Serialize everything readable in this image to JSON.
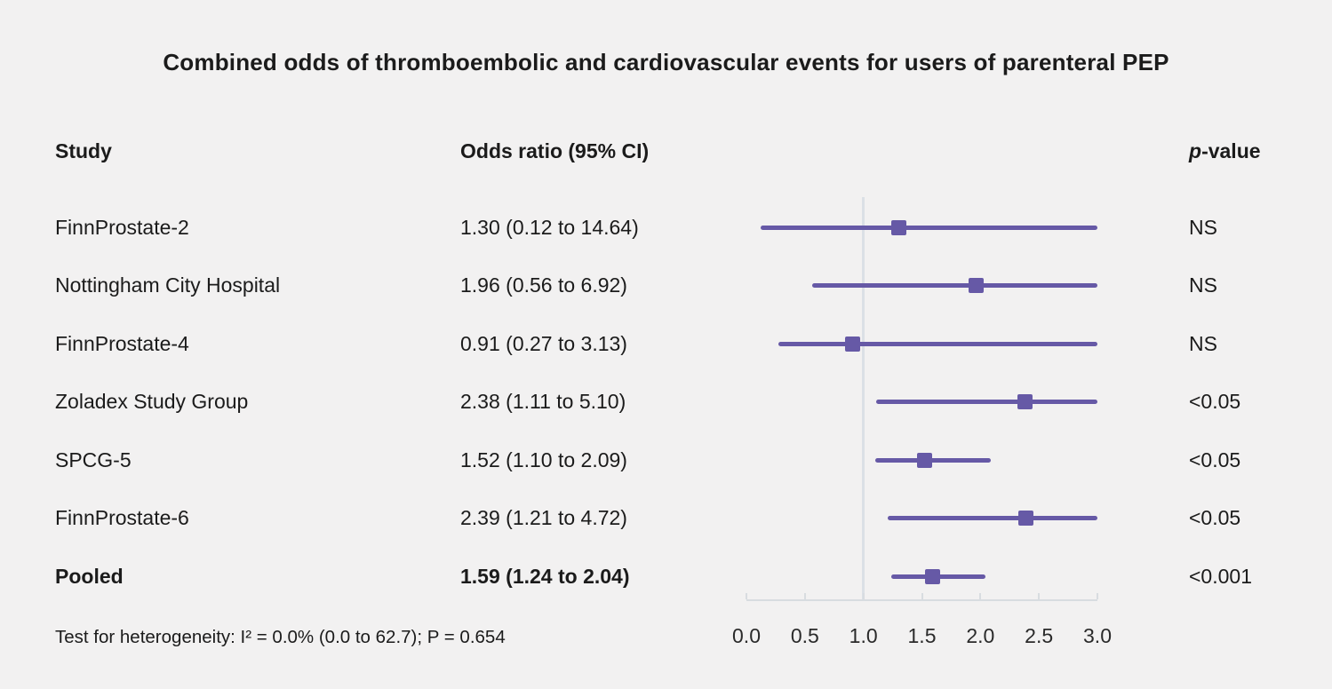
{
  "title": "Combined odds of thromboembolic and cardiovascular events for users of parenteral PEP",
  "columns": {
    "study": "Study",
    "odds_ratio": "Odds ratio (95% CI)",
    "p_italic": "p",
    "p_suffix": "-value"
  },
  "rows": [
    {
      "study": "FinnProstate-2",
      "or_text": "1.30 (0.12 to 14.64)",
      "p": "NS",
      "or": 1.3,
      "ci_low": 0.12,
      "ci_high": 14.64,
      "bold": false
    },
    {
      "study": "Nottingham City Hospital",
      "or_text": "1.96 (0.56 to 6.92)",
      "p": "NS",
      "or": 1.96,
      "ci_low": 0.56,
      "ci_high": 6.92,
      "bold": false
    },
    {
      "study": "FinnProstate-4",
      "or_text": "0.91 (0.27 to 3.13)",
      "p": "NS",
      "or": 0.91,
      "ci_low": 0.27,
      "ci_high": 3.13,
      "bold": false
    },
    {
      "study": "Zoladex Study Group",
      "or_text": "2.38 (1.11 to 5.10)",
      "p": "<0.05",
      "or": 2.38,
      "ci_low": 1.11,
      "ci_high": 5.1,
      "bold": false
    },
    {
      "study": "SPCG-5",
      "or_text": "1.52 (1.10 to 2.09)",
      "p": "<0.05",
      "or": 1.52,
      "ci_low": 1.1,
      "ci_high": 2.09,
      "bold": false
    },
    {
      "study": "FinnProstate-6",
      "or_text": "2.39 (1.21 to 4.72)",
      "p": "<0.05",
      "or": 2.39,
      "ci_low": 1.21,
      "ci_high": 4.72,
      "bold": false
    },
    {
      "study": "Pooled",
      "or_text": "1.59 (1.24 to 2.04)",
      "p": "<0.001",
      "or": 1.59,
      "ci_low": 1.24,
      "ci_high": 2.04,
      "bold": true
    }
  ],
  "footer": "Test for heterogeneity: I² = 0.0% (0.0 to 62.7); P = 0.654",
  "axis": {
    "tick_labels": [
      "0.0",
      "0.5",
      "1.0",
      "1.5",
      "2.0",
      "2.5",
      "3.0"
    ],
    "tick_values": [
      0.0,
      0.5,
      1.0,
      1.5,
      2.0,
      2.5,
      3.0
    ],
    "min": 0.0,
    "max": 3.0,
    "reference_value": 1.0
  },
  "colors": {
    "background": "#f2f1f1",
    "series": "#6659a6",
    "reference_line": "#dbe0e6",
    "axis_line": "#d8dce0",
    "text": "#1b1b1b"
  },
  "chart_data": {
    "type": "scatter",
    "variant": "forest_plot",
    "title": "Combined odds of thromboembolic and cardiovascular events for users of parenteral PEP",
    "xlabel": "Odds ratio (95% CI)",
    "xlim": [
      0.0,
      3.0
    ],
    "x_ticks": [
      0.0,
      0.5,
      1.0,
      1.5,
      2.0,
      2.5,
      3.0
    ],
    "reference_line_x": 1.0,
    "grid": false,
    "categories": [
      "FinnProstate-2",
      "Nottingham City Hospital",
      "FinnProstate-4",
      "Zoladex Study Group",
      "SPCG-5",
      "FinnProstate-6",
      "Pooled"
    ],
    "odds_ratios": [
      1.3,
      1.96,
      0.91,
      2.38,
      1.52,
      2.39,
      1.59
    ],
    "ci_low": [
      0.12,
      0.56,
      0.27,
      1.11,
      1.1,
      1.21,
      1.24
    ],
    "ci_high": [
      14.64,
      6.92,
      3.13,
      5.1,
      2.09,
      4.72,
      2.04
    ],
    "p_values": [
      "NS",
      "NS",
      "NS",
      "<0.05",
      "<0.05",
      "<0.05",
      "<0.001"
    ],
    "notes": "Confidence interval bars are clipped at the axis maximum of 3.0; vertical reference line at odds ratio = 1.0",
    "heterogeneity": "I² = 0.0% (0.0 to 62.7); P = 0.654"
  }
}
